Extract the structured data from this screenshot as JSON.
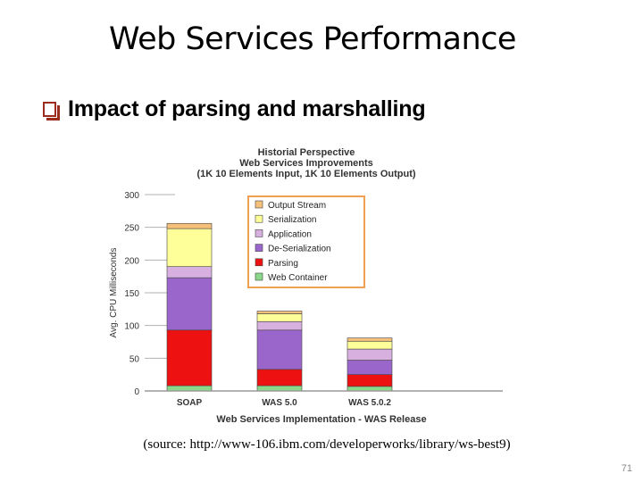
{
  "slide": {
    "title": "Web Services Performance",
    "bullet": "Impact of parsing and marshalling",
    "source": "(source: http://www-106.ibm.com/developerworks/library/ws-best9)",
    "page_number": "71"
  },
  "colors": {
    "bullet": "#9b2c1e",
    "legend_border": "#f0a050"
  },
  "chart_data": {
    "type": "bar",
    "stacked": true,
    "title": [
      "Historial Perspective",
      "Web Services Improvements",
      "(1K 10 Elements Input, 1K 10 Elements Output)"
    ],
    "xlabel": "Web Services Implementation - WAS Release",
    "ylabel": "Avg. CPU Milliseconds",
    "ylim": [
      0,
      300
    ],
    "yticks": [
      0,
      50,
      100,
      150,
      200,
      250,
      300
    ],
    "categories": [
      "SOAP",
      "WAS 5.0",
      "WAS 5.0.2"
    ],
    "legend_position": "top-right",
    "series": [
      {
        "name": "Web Container",
        "color": "#8ad98a",
        "values": [
          8,
          8,
          7
        ]
      },
      {
        "name": "Parsing",
        "color": "#ee1111",
        "values": [
          85,
          25,
          18
        ]
      },
      {
        "name": "De-Serialization",
        "color": "#9a66cc",
        "values": [
          80,
          60,
          22
        ]
      },
      {
        "name": "Application",
        "color": "#d8b0e0",
        "values": [
          17,
          13,
          17
        ]
      },
      {
        "name": "Serialization",
        "color": "#ffff99",
        "values": [
          58,
          12,
          12
        ]
      },
      {
        "name": "Output Stream",
        "color": "#f5c07a",
        "values": [
          8,
          4,
          5
        ]
      }
    ]
  }
}
